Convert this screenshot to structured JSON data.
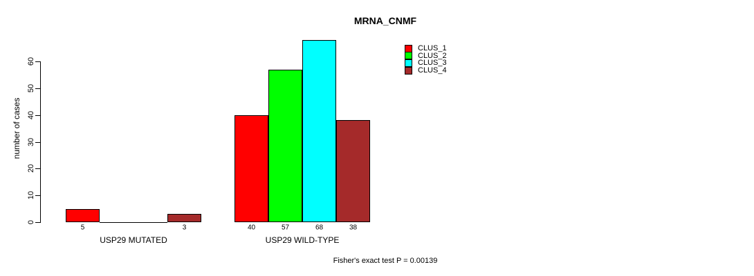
{
  "title": "MRNA_CNMF",
  "footnote": "Fisher's exact test P = 0.00139",
  "chart_data": {
    "type": "bar",
    "title": "MRNA_CNMF",
    "xlabel": "",
    "ylabel": "number of cases",
    "ylim": [
      0,
      60
    ],
    "yticks": [
      0,
      10,
      20,
      30,
      40,
      50,
      60
    ],
    "grid": false,
    "legend_position": "top-right",
    "series": [
      {
        "name": "CLUS_1",
        "color": "#ff0000"
      },
      {
        "name": "CLUS_2",
        "color": "#00ff00"
      },
      {
        "name": "CLUS_3",
        "color": "#00ffff"
      },
      {
        "name": "CLUS_4",
        "color": "#a52a2a"
      }
    ],
    "groups": [
      {
        "label": "USP29 MUTATED",
        "values": [
          5,
          0,
          0,
          3
        ]
      },
      {
        "label": "USP29 WILD-TYPE",
        "values": [
          40,
          57,
          68,
          38
        ]
      }
    ],
    "bar_value_labels_shown_for_nonzero_only": true
  }
}
